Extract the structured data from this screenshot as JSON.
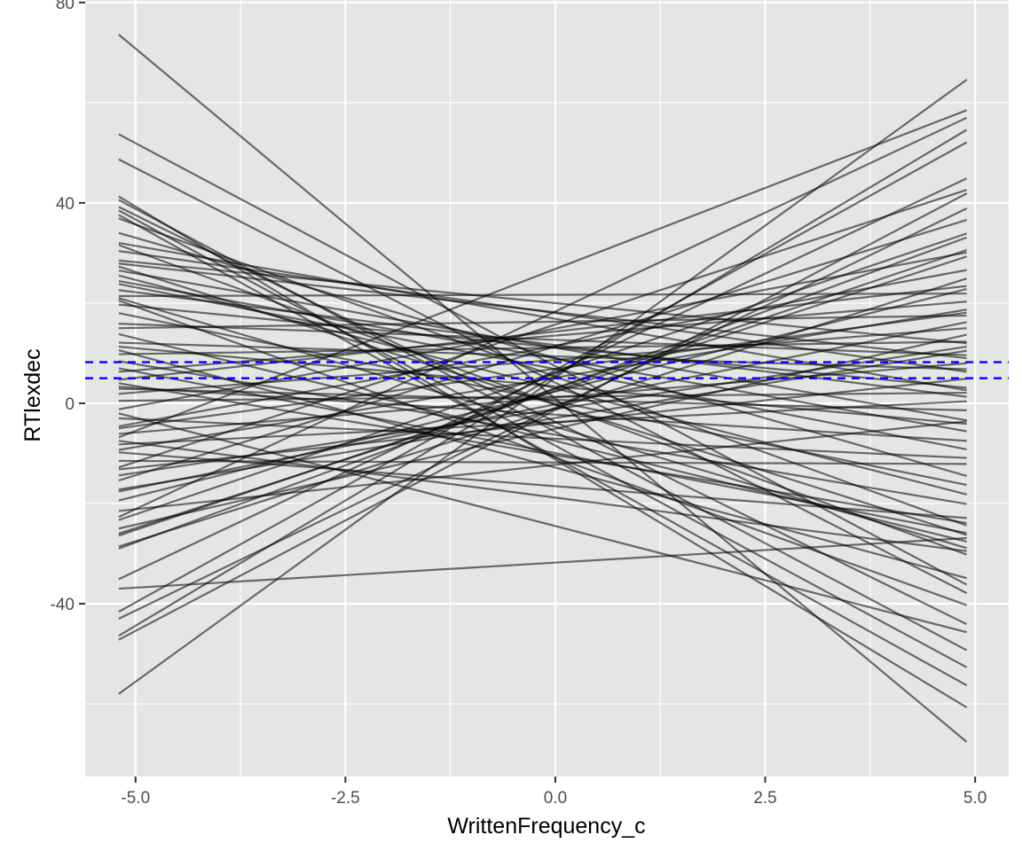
{
  "chart_data": {
    "type": "line",
    "xlabel": "WrittenFrequency_c",
    "ylabel": "RTlexdec",
    "xlim": [
      -5.6,
      5.4
    ],
    "ylim": [
      -74.5,
      80.5
    ],
    "x_ticks": [
      -5.0,
      -2.5,
      0.0,
      2.5,
      5.0
    ],
    "x_tick_labels": [
      "-5.0",
      "-2.5",
      "0.0",
      "2.5",
      "5.0"
    ],
    "y_ticks": [
      -40,
      0,
      40,
      80
    ],
    "y_tick_labels": [
      "-40",
      "0",
      "40",
      "80"
    ],
    "grid": true,
    "line_color": "#000000",
    "line_opacity": 0.55,
    "reference_color": "#0000ff",
    "x_range": [
      -5.2,
      4.9
    ],
    "series": [
      {
        "values": [
          73.6,
          -67.6
        ]
      },
      {
        "values": [
          53.7,
          -36.2
        ]
      },
      {
        "values": [
          48.7,
          -37.9
        ]
      },
      {
        "values": [
          41.3,
          -60.7
        ]
      },
      {
        "values": [
          40.6,
          -49.3
        ]
      },
      {
        "values": [
          39.2,
          -44.1
        ]
      },
      {
        "values": [
          38.5,
          -52.7
        ]
      },
      {
        "values": [
          36.9,
          -24.4
        ]
      },
      {
        "values": [
          34.0,
          -14.5
        ]
      },
      {
        "values": [
          31.6,
          -30.2
        ]
      },
      {
        "values": [
          30.4,
          6.3
        ]
      },
      {
        "values": [
          28.5,
          12.0
        ]
      },
      {
        "values": [
          27.3,
          -26.3
        ]
      },
      {
        "values": [
          26.5,
          -3.4
        ]
      },
      {
        "values": [
          25.5,
          -18.2
        ]
      },
      {
        "values": [
          23.8,
          -9.2
        ]
      },
      {
        "values": [
          22.6,
          1.3
        ]
      },
      {
        "values": [
          21.4,
          21.9
        ]
      },
      {
        "values": [
          20.5,
          -40.3
        ]
      },
      {
        "values": [
          19.7,
          3.1
        ]
      },
      {
        "values": [
          15.9,
          9.6
        ]
      },
      {
        "values": [
          13.8,
          -27.6
        ]
      },
      {
        "values": [
          11.3,
          -4.1
        ]
      },
      {
        "values": [
          9.8,
          12.3
        ]
      },
      {
        "values": [
          8.4,
          -20.1
        ]
      },
      {
        "values": [
          6.3,
          20.3
        ]
      },
      {
        "values": [
          4.7,
          23.4
        ]
      },
      {
        "values": [
          3.3,
          -7.5
        ]
      },
      {
        "values": [
          1.9,
          15.0
        ]
      },
      {
        "values": [
          0.5,
          2.1
        ]
      },
      {
        "values": [
          -1.2,
          30.1
        ]
      },
      {
        "values": [
          -3.0,
          -10.9
        ]
      },
      {
        "values": [
          -4.6,
          26.6
        ]
      },
      {
        "values": [
          -6.1,
          8.0
        ]
      },
      {
        "values": [
          -7.5,
          -29.5
        ]
      },
      {
        "values": [
          -9.3,
          18.7
        ]
      },
      {
        "values": [
          -11.5,
          -12.1
        ]
      },
      {
        "values": [
          -13.2,
          4.9
        ]
      },
      {
        "values": [
          -15.4,
          36.6
        ]
      },
      {
        "values": [
          -17.6,
          16.2
        ]
      },
      {
        "values": [
          -19.4,
          22.8
        ]
      },
      {
        "values": [
          -21.5,
          -3.6
        ]
      },
      {
        "values": [
          -23.3,
          33.9
        ]
      },
      {
        "values": [
          -25.0,
          13.7
        ]
      },
      {
        "values": [
          -26.4,
          30.6
        ]
      },
      {
        "values": [
          -28.6,
          24.9
        ]
      },
      {
        "values": [
          -35.1,
          44.9
        ]
      },
      {
        "values": [
          -37.0,
          -26.9
        ]
      },
      {
        "values": [
          -41.6,
          52.1
        ]
      },
      {
        "values": [
          -43.0,
          38.9
        ]
      },
      {
        "values": [
          -46.4,
          54.6
        ]
      },
      {
        "values": [
          -47.2,
          41.9
        ]
      },
      {
        "values": [
          -58.0,
          64.6
        ]
      },
      {
        "values": [
          18.0,
          -16.3
        ]
      },
      {
        "values": [
          -5.0,
          18.1
        ]
      },
      {
        "values": [
          2.9,
          -1.4
        ]
      },
      {
        "values": [
          -17.2,
          10.5
        ]
      },
      {
        "values": [
          12.1,
          6.8
        ]
      },
      {
        "values": [
          -26.0,
          29.3
        ]
      },
      {
        "values": [
          32.0,
          2.6
        ]
      },
      {
        "values": [
          -9.8,
          -22.9
        ]
      },
      {
        "values": [
          24.4,
          -5.6
        ]
      },
      {
        "values": [
          -22.7,
          57.0
        ]
      },
      {
        "values": [
          7.0,
          -25.9
        ]
      },
      {
        "values": [
          -12.8,
          42.6
        ]
      },
      {
        "values": [
          15.0,
          17.5
        ]
      },
      {
        "values": [
          -29.0,
          33.1
        ]
      },
      {
        "values": [
          10.6,
          -34.9
        ]
      },
      {
        "values": [
          -8.2,
          0.4
        ]
      },
      {
        "values": [
          37.6,
          -56.3
        ]
      },
      {
        "values": [
          -2.0,
          -45.7
        ]
      },
      {
        "values": [
          21.0,
          -28.9
        ]
      },
      {
        "values": [
          -14.4,
          11.3
        ]
      },
      {
        "values": [
          4.0,
          -23.9
        ]
      },
      {
        "values": [
          -6.8,
          58.5
        ]
      },
      {
        "values": [
          27.9,
          9.0
        ]
      }
    ],
    "reference_lines": [
      {
        "y": 8.2
      },
      {
        "y": 5.0
      }
    ]
  }
}
